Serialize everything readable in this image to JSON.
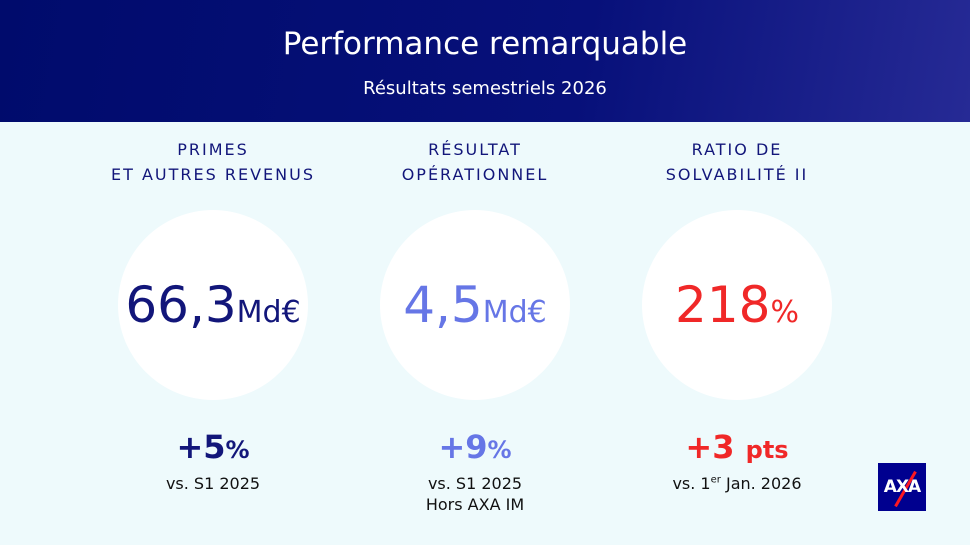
{
  "header": {
    "title": "Performance remarquable",
    "subtitle": "Résultats semestriels 2026"
  },
  "kpis": [
    {
      "label": [
        "PRIMES",
        "ET AUTRES REVENUS"
      ],
      "value": "66,3",
      "unit": "Md€",
      "color": "#12167a",
      "change": "+5",
      "change_unit": "%",
      "change_color": "#12167a",
      "comparison": [
        {
          "text": "vs. S1 2025"
        }
      ]
    },
    {
      "label": [
        "RÉSULTAT",
        "OPÉRATIONNEL"
      ],
      "value": "4,5",
      "unit": "Md€",
      "color": "#6676e6",
      "change": "+9",
      "change_unit": "%",
      "change_color": "#6676e6",
      "comparison": [
        {
          "text": "vs. S1 2025"
        },
        {
          "text": "Hors AXA IM"
        }
      ]
    },
    {
      "label": [
        "RATIO DE",
        "SOLVABILITÉ II"
      ],
      "value": "218",
      "unit": "%",
      "color": "#f02828",
      "change": "+3",
      "change_unit": "pts",
      "change_color": "#f02828",
      "comparison": [
        {
          "text": "vs. 1",
          "superscript": "er",
          "after": "Jan. 2026"
        }
      ]
    }
  ],
  "logo": "AXA"
}
